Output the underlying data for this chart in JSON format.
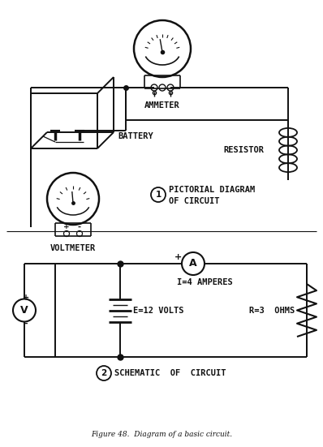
{
  "bg_color": "#ffffff",
  "line_color": "#111111",
  "title": "Figure 48.  Diagram of a basic circuit.",
  "label_ammeter": "AMMETER",
  "label_battery": "BATTERY",
  "label_resistor": "RESISTOR",
  "label_voltmeter": "VOLTMETER",
  "label_pictorial1": "PICTORIAL DIAGRAM",
  "label_pictorial2": "OF CIRCUIT",
  "label_schematic": "SCHEMATIC  OF  CIRCUIT",
  "label_amperes": "I=4 AMPERES",
  "label_volts": "E=12 VOLTS",
  "label_ohms": "R=3  OHMS",
  "circle1_label": "1",
  "circle2_label": "2",
  "ammeter_label": "A",
  "voltmeter_label": "V",
  "plus": "+",
  "minus": "-"
}
